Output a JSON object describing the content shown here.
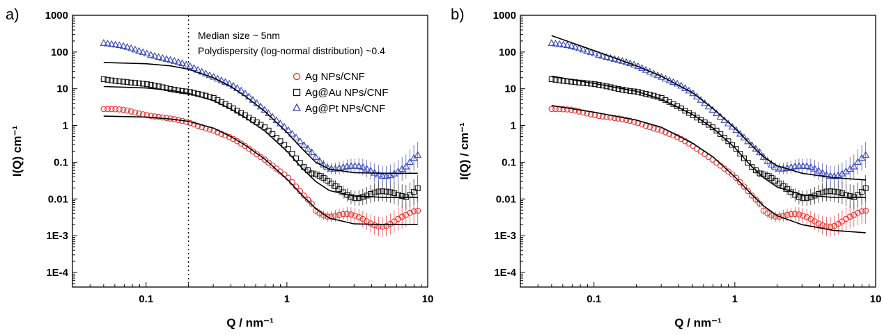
{
  "figure": {
    "panels": [
      {
        "panel_label": "a)",
        "annotations": [
          "Median size ~ 5nm",
          "Polydispersity (log-normal distribution) ~0.4"
        ],
        "legend": [
          {
            "label": "Ag NPs/CNF",
            "marker": "circle-open",
            "color": "#e8302c"
          },
          {
            "label": "Ag@Au NPs/CNF",
            "marker": "square-open",
            "color": "#111111"
          },
          {
            "label": "Ag@Pt NPs/CNF",
            "marker": "triangle-open",
            "color": "#3545b5"
          }
        ]
      },
      {
        "panel_label": "b)",
        "annotations": [],
        "legend": []
      }
    ]
  },
  "chart_data": [
    {
      "type": "scatter",
      "panel": "a)",
      "xlabel": "Q / nm⁻¹",
      "ylabel": "I(Q) cm⁻¹",
      "xscale": "log",
      "yscale": "log",
      "xlim": [
        0.03,
        10
      ],
      "ylim": [
        4e-05,
        1000
      ],
      "xticks": [
        0.1,
        1,
        10
      ],
      "xtick_labels": [
        "0.1",
        "1",
        "10"
      ],
      "yticks": [
        0.0001,
        0.001,
        0.01,
        0.1,
        1,
        10,
        100,
        1000
      ],
      "ytick_labels": [
        "1E-4",
        "1E-3",
        "0.01",
        "0.1",
        "1",
        "10",
        "100",
        "1000"
      ],
      "reference_line": {
        "x": 0.2,
        "style": "dotted"
      },
      "legend_position": "top-right",
      "series": [
        {
          "name": "Ag NPs/CNF",
          "color": "#e8302c",
          "marker": "circle-open",
          "x": [
            0.05,
            0.07,
            0.1,
            0.15,
            0.2,
            0.3,
            0.4,
            0.5,
            0.7,
            1.0,
            1.3,
            1.6,
            2.0,
            3.0,
            5.0,
            7.0,
            8.5
          ],
          "y": [
            2.8,
            2.6,
            2.0,
            1.5,
            1.2,
            0.75,
            0.45,
            0.28,
            0.12,
            0.04,
            0.013,
            0.006,
            0.004,
            0.0027,
            0.0023,
            0.0028,
            0.004
          ]
        },
        {
          "name": "Ag@Au NPs/CNF",
          "color": "#111111",
          "marker": "square-open",
          "x": [
            0.05,
            0.07,
            0.1,
            0.15,
            0.2,
            0.3,
            0.4,
            0.5,
            0.7,
            1.0,
            1.3,
            1.6,
            2.0,
            3.0,
            5.0,
            7.0,
            8.5
          ],
          "y": [
            18,
            16,
            13,
            10,
            8.5,
            5.5,
            3.3,
            2.0,
            0.85,
            0.26,
            0.08,
            0.04,
            0.022,
            0.014,
            0.012,
            0.014,
            0.025
          ]
        },
        {
          "name": "Ag@Pt NPs/CNF",
          "color": "#3545b5",
          "marker": "triangle-open",
          "x": [
            0.05,
            0.07,
            0.1,
            0.15,
            0.2,
            0.3,
            0.4,
            0.5,
            0.7,
            1.0,
            1.3,
            1.6,
            2.0,
            3.0,
            5.0,
            7.0,
            8.5
          ],
          "y": [
            180,
            140,
            95,
            60,
            42,
            22,
            13,
            7.5,
            2.7,
            0.8,
            0.3,
            0.15,
            0.09,
            0.06,
            0.055,
            0.065,
            0.12
          ]
        }
      ],
      "fits": [
        {
          "series": "Ag NPs/CNF",
          "color": "#000000",
          "x": [
            0.05,
            0.1,
            0.15,
            0.2,
            0.3,
            0.4,
            0.5,
            0.7,
            1.0,
            1.3,
            1.6,
            2.0,
            3.0,
            5.0,
            8.5
          ],
          "y": [
            1.8,
            1.7,
            1.5,
            1.3,
            0.85,
            0.5,
            0.3,
            0.12,
            0.035,
            0.012,
            0.0055,
            0.003,
            0.0021,
            0.002,
            0.002
          ]
        },
        {
          "series": "Ag@Au NPs/CNF",
          "color": "#000000",
          "x": [
            0.05,
            0.1,
            0.15,
            0.2,
            0.3,
            0.4,
            0.5,
            0.7,
            1.0,
            1.3,
            1.6,
            2.0,
            3.0,
            5.0,
            8.5
          ],
          "y": [
            11.5,
            10.5,
            9.0,
            7.5,
            4.8,
            2.8,
            1.7,
            0.7,
            0.2,
            0.065,
            0.03,
            0.017,
            0.012,
            0.011,
            0.011
          ]
        },
        {
          "series": "Ag@Pt NPs/CNF",
          "color": "#000000",
          "x": [
            0.05,
            0.1,
            0.15,
            0.2,
            0.3,
            0.4,
            0.5,
            0.7,
            1.0,
            1.3,
            1.6,
            2.0,
            3.0,
            5.0,
            8.5
          ],
          "y": [
            52,
            48,
            42,
            34,
            20,
            11.5,
            6.5,
            2.4,
            0.65,
            0.22,
            0.1,
            0.065,
            0.052,
            0.05,
            0.05
          ]
        }
      ]
    },
    {
      "type": "scatter",
      "panel": "b)",
      "xlabel": "Q / nm⁻¹",
      "ylabel": "I(Q) / cm⁻¹",
      "xscale": "log",
      "yscale": "log",
      "xlim": [
        0.03,
        10
      ],
      "ylim": [
        4e-05,
        1000
      ],
      "xticks": [
        0.1,
        1,
        10
      ],
      "xtick_labels": [
        "0.1",
        "1",
        "10"
      ],
      "yticks": [
        0.0001,
        0.001,
        0.01,
        0.1,
        1,
        10,
        100,
        1000
      ],
      "ytick_labels": [
        "1E-4",
        "1E-3",
        "0.01",
        "0.1",
        "1",
        "10",
        "100",
        "1000"
      ],
      "series": [
        {
          "color": "#e8302c",
          "marker": "circle-open",
          "x": [
            0.05,
            0.07,
            0.1,
            0.15,
            0.2,
            0.3,
            0.4,
            0.5,
            0.7,
            1.0,
            1.3,
            1.6,
            2.0,
            3.0,
            5.0,
            7.0,
            8.5
          ],
          "y": [
            2.8,
            2.6,
            2.0,
            1.5,
            1.2,
            0.75,
            0.45,
            0.28,
            0.12,
            0.04,
            0.013,
            0.006,
            0.004,
            0.0027,
            0.0023,
            0.0028,
            0.004
          ]
        },
        {
          "color": "#111111",
          "marker": "square-open",
          "x": [
            0.05,
            0.07,
            0.1,
            0.15,
            0.2,
            0.3,
            0.4,
            0.5,
            0.7,
            1.0,
            1.3,
            1.6,
            2.0,
            3.0,
            5.0,
            7.0,
            8.5
          ],
          "y": [
            18,
            16,
            13,
            10,
            8.5,
            5.5,
            3.3,
            2.0,
            0.85,
            0.26,
            0.08,
            0.04,
            0.022,
            0.014,
            0.012,
            0.014,
            0.025
          ]
        },
        {
          "color": "#3545b5",
          "marker": "triangle-open",
          "x": [
            0.05,
            0.07,
            0.1,
            0.15,
            0.2,
            0.3,
            0.4,
            0.5,
            0.7,
            1.0,
            1.3,
            1.6,
            2.0,
            3.0,
            5.0,
            7.0,
            8.5
          ],
          "y": [
            180,
            140,
            95,
            60,
            42,
            22,
            13,
            7.5,
            2.7,
            0.8,
            0.3,
            0.15,
            0.09,
            0.06,
            0.055,
            0.065,
            0.12
          ]
        }
      ],
      "fits": [
        {
          "color": "#000000",
          "x": [
            0.05,
            0.1,
            0.2,
            0.3,
            0.5,
            0.7,
            1.0,
            1.3,
            1.6,
            2.0,
            3.0,
            5.0,
            8.5
          ],
          "y": [
            3.5,
            2.3,
            1.4,
            0.9,
            0.33,
            0.14,
            0.04,
            0.014,
            0.0065,
            0.0035,
            0.002,
            0.0014,
            0.0012
          ]
        },
        {
          "color": "#000000",
          "x": [
            0.05,
            0.1,
            0.2,
            0.3,
            0.5,
            0.7,
            1.0,
            1.3,
            1.6,
            2.0,
            3.0,
            5.0,
            8.5
          ],
          "y": [
            22,
            14,
            8.5,
            5.2,
            2.0,
            0.85,
            0.25,
            0.08,
            0.038,
            0.021,
            0.013,
            0.011,
            0.011
          ]
        },
        {
          "color": "#000000",
          "x": [
            0.05,
            0.1,
            0.2,
            0.3,
            0.5,
            0.7,
            1.0,
            1.3,
            1.6,
            2.0,
            3.0,
            5.0,
            8.5
          ],
          "y": [
            280,
            110,
            42,
            22,
            7.8,
            2.9,
            0.85,
            0.3,
            0.14,
            0.08,
            0.05,
            0.038,
            0.033
          ]
        }
      ]
    }
  ]
}
